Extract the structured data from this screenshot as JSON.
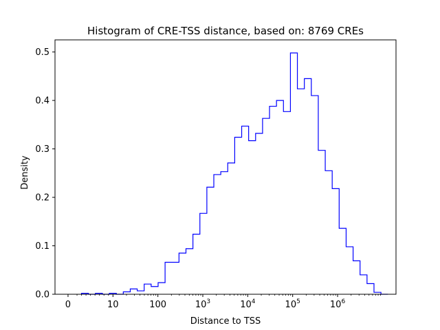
{
  "chart_data": {
    "type": "histogram-step",
    "title": "Histogram of CRE-TSS distance, based on: 8769 CREs",
    "xlabel": "Distance to TSS",
    "ylabel": "Density",
    "x_scale": "symlog",
    "x_linthresh": 10,
    "xlim": [
      -0.29,
      7.3
    ],
    "ylim": [
      0,
      0.525
    ],
    "y_ticks": [
      "0.0",
      "0.1",
      "0.2",
      "0.3",
      "0.4",
      "0.5"
    ],
    "x_ticks": [
      {
        "value": 0,
        "base": "0",
        "exp": ""
      },
      {
        "value": 1,
        "base": "10",
        "exp": ""
      },
      {
        "value": 2,
        "base": "100",
        "exp": ""
      },
      {
        "value": 3,
        "base": "10",
        "exp": "3"
      },
      {
        "value": 4,
        "base": "10",
        "exp": "4"
      },
      {
        "value": 5,
        "base": "10",
        "exp": "5"
      },
      {
        "value": 6,
        "base": "10",
        "exp": "6"
      }
    ],
    "color": "#0000ff",
    "bin_edges": [
      0.3,
      0.455,
      0.61,
      0.765,
      0.92,
      1.075,
      1.23,
      1.385,
      1.54,
      1.695,
      1.85,
      2.005,
      2.16,
      2.315,
      2.47,
      2.625,
      2.78,
      2.935,
      3.09,
      3.245,
      3.4,
      3.555,
      3.71,
      3.865,
      4.02,
      4.175,
      4.33,
      4.485,
      4.64,
      4.795,
      4.95,
      5.105,
      5.26,
      5.415,
      5.57,
      5.725,
      5.88,
      6.035,
      6.19,
      6.345,
      6.5,
      6.655,
      6.81,
      6.965,
      7.12
    ],
    "densities": [
      0.002,
      0.0,
      0.002,
      0.0,
      0.002,
      0.0,
      0.005,
      0.011,
      0.007,
      0.021,
      0.016,
      0.024,
      0.066,
      0.066,
      0.085,
      0.094,
      0.124,
      0.167,
      0.221,
      0.247,
      0.253,
      0.271,
      0.324,
      0.347,
      0.317,
      0.332,
      0.363,
      0.388,
      0.4,
      0.377,
      0.498,
      0.424,
      0.445,
      0.41,
      0.297,
      0.255,
      0.218,
      0.136,
      0.098,
      0.069,
      0.04,
      0.022,
      0.004,
      0.0
    ]
  }
}
